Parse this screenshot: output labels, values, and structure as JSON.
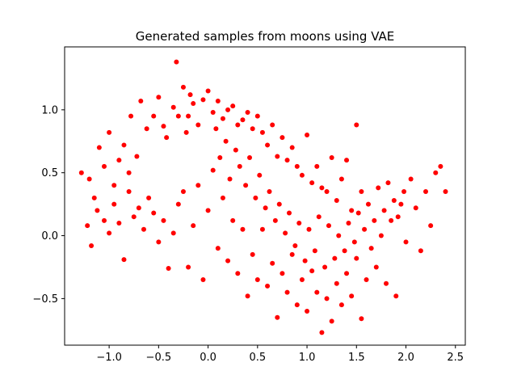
{
  "chart_data": {
    "type": "scatter",
    "title": "Generated samples from moons using VAE",
    "xlabel": "",
    "ylabel": "",
    "xlim": [
      -1.45,
      2.6
    ],
    "ylim": [
      -0.87,
      1.5
    ],
    "x_ticks": [
      -1.0,
      -0.5,
      0.0,
      0.5,
      1.0,
      1.5,
      2.0,
      2.5
    ],
    "x_tick_labels": [
      "−1.0",
      "−0.5",
      "0.0",
      "0.5",
      "1.0",
      "1.5",
      "2.0",
      "2.5"
    ],
    "y_ticks": [
      -0.5,
      0.0,
      0.5,
      1.0
    ],
    "y_tick_labels": [
      "−0.5",
      "0.0",
      "0.5",
      "1.0"
    ],
    "grid": false,
    "legend": "none",
    "marker_color": "#ff0000",
    "series": [
      {
        "points": [
          [
            -1.28,
            0.5
          ],
          [
            -1.2,
            0.45
          ],
          [
            -1.15,
            0.3
          ],
          [
            -1.1,
            0.7
          ],
          [
            -1.05,
            0.55
          ],
          [
            -1.0,
            0.82
          ],
          [
            -0.95,
            0.4
          ],
          [
            -0.9,
            0.6
          ],
          [
            -0.85,
            0.72
          ],
          [
            -0.8,
            0.5
          ],
          [
            -0.78,
            0.95
          ],
          [
            -0.72,
            0.63
          ],
          [
            -0.68,
            1.07
          ],
          [
            -0.62,
            0.85
          ],
          [
            -0.55,
            0.95
          ],
          [
            -0.5,
            1.1
          ],
          [
            -0.45,
            0.87
          ],
          [
            -0.42,
            0.78
          ],
          [
            -0.35,
            1.02
          ],
          [
            -0.32,
            1.38
          ],
          [
            -0.25,
            1.18
          ],
          [
            -0.2,
            0.95
          ],
          [
            -0.15,
            1.05
          ],
          [
            -0.1,
            0.88
          ],
          [
            -0.05,
            1.08
          ],
          [
            0.0,
            1.15
          ],
          [
            0.05,
            0.98
          ],
          [
            0.1,
            1.07
          ],
          [
            0.15,
            0.93
          ],
          [
            0.2,
            1.0
          ],
          [
            0.25,
            1.03
          ],
          [
            0.3,
            0.88
          ],
          [
            0.35,
            0.92
          ],
          [
            0.4,
            0.98
          ],
          [
            0.45,
            0.85
          ],
          [
            0.5,
            0.95
          ],
          [
            0.55,
            0.82
          ],
          [
            0.6,
            0.72
          ],
          [
            0.65,
            0.88
          ],
          [
            0.7,
            0.63
          ],
          [
            0.75,
            0.78
          ],
          [
            0.8,
            0.6
          ],
          [
            0.85,
            0.7
          ],
          [
            0.9,
            0.55
          ],
          [
            0.95,
            0.48
          ],
          [
            1.0,
            0.8
          ],
          [
            1.05,
            0.42
          ],
          [
            1.1,
            0.55
          ],
          [
            1.15,
            0.38
          ],
          [
            1.2,
            0.35
          ],
          [
            1.25,
            0.62
          ],
          [
            1.3,
            0.28
          ],
          [
            1.35,
            0.45
          ],
          [
            1.4,
            0.6
          ],
          [
            1.45,
            0.2
          ],
          [
            1.5,
            0.88
          ],
          [
            1.55,
            0.35
          ],
          [
            -1.22,
            0.08
          ],
          [
            -1.18,
            -0.08
          ],
          [
            -1.12,
            0.2
          ],
          [
            -1.05,
            0.12
          ],
          [
            -1.0,
            0.02
          ],
          [
            -0.95,
            0.25
          ],
          [
            -0.9,
            0.1
          ],
          [
            -0.85,
            -0.19
          ],
          [
            -0.8,
            0.35
          ],
          [
            -0.75,
            0.15
          ],
          [
            -0.7,
            0.22
          ],
          [
            -0.65,
            0.05
          ],
          [
            -0.6,
            0.3
          ],
          [
            -0.55,
            0.18
          ],
          [
            -0.5,
            -0.05
          ],
          [
            -0.45,
            0.12
          ],
          [
            -0.4,
            -0.26
          ],
          [
            -0.35,
            0.02
          ],
          [
            -0.3,
            0.25
          ],
          [
            -0.25,
            0.35
          ],
          [
            -0.2,
            -0.25
          ],
          [
            -0.15,
            0.08
          ],
          [
            -0.1,
            0.4
          ],
          [
            -0.05,
            -0.35
          ],
          [
            0.0,
            0.2
          ],
          [
            0.05,
            0.52
          ],
          [
            0.1,
            -0.1
          ],
          [
            0.15,
            0.3
          ],
          [
            0.2,
            -0.2
          ],
          [
            0.25,
            0.12
          ],
          [
            0.3,
            -0.3
          ],
          [
            0.35,
            0.05
          ],
          [
            0.4,
            -0.48
          ],
          [
            0.45,
            -0.15
          ],
          [
            0.5,
            -0.35
          ],
          [
            0.55,
            0.05
          ],
          [
            0.6,
            -0.4
          ],
          [
            0.65,
            -0.22
          ],
          [
            0.7,
            -0.65
          ],
          [
            0.75,
            -0.3
          ],
          [
            0.8,
            -0.45
          ],
          [
            0.85,
            -0.15
          ],
          [
            0.9,
            -0.55
          ],
          [
            0.95,
            -0.35
          ],
          [
            1.0,
            -0.6
          ],
          [
            1.05,
            -0.28
          ],
          [
            1.1,
            -0.45
          ],
          [
            1.15,
            -0.77
          ],
          [
            1.2,
            -0.5
          ],
          [
            1.25,
            -0.68
          ],
          [
            1.3,
            -0.38
          ],
          [
            1.35,
            -0.55
          ],
          [
            1.4,
            -0.3
          ],
          [
            1.45,
            -0.48
          ],
          [
            1.5,
            -0.18
          ],
          [
            1.55,
            -0.66
          ],
          [
            1.6,
            -0.35
          ],
          [
            1.65,
            -0.1
          ],
          [
            1.7,
            -0.25
          ],
          [
            1.75,
            0.0
          ],
          [
            1.8,
            -0.38
          ],
          [
            1.85,
            0.12
          ],
          [
            1.9,
            -0.48
          ],
          [
            1.95,
            0.25
          ],
          [
            2.0,
            -0.05
          ],
          [
            2.05,
            0.45
          ],
          [
            2.1,
            0.22
          ],
          [
            2.15,
            -0.12
          ],
          [
            2.2,
            0.35
          ],
          [
            2.25,
            0.08
          ],
          [
            2.3,
            0.5
          ],
          [
            2.35,
            0.55
          ],
          [
            2.4,
            0.35
          ],
          [
            -0.3,
            0.95
          ],
          [
            -0.22,
            0.82
          ],
          [
            -0.18,
            1.12
          ],
          [
            0.08,
            0.85
          ],
          [
            0.12,
            0.62
          ],
          [
            0.18,
            0.75
          ],
          [
            0.22,
            0.45
          ],
          [
            0.28,
            0.68
          ],
          [
            0.32,
            0.55
          ],
          [
            0.38,
            0.4
          ],
          [
            0.42,
            0.62
          ],
          [
            0.48,
            0.3
          ],
          [
            0.52,
            0.48
          ],
          [
            0.58,
            0.22
          ],
          [
            0.62,
            0.35
          ],
          [
            0.68,
            0.12
          ],
          [
            0.72,
            0.25
          ],
          [
            0.78,
            0.02
          ],
          [
            0.82,
            0.18
          ],
          [
            0.88,
            -0.08
          ],
          [
            0.92,
            0.1
          ],
          [
            0.98,
            -0.2
          ],
          [
            1.02,
            0.05
          ],
          [
            1.08,
            -0.12
          ],
          [
            1.12,
            0.15
          ],
          [
            1.18,
            -0.25
          ],
          [
            1.22,
            0.08
          ],
          [
            1.28,
            -0.18
          ],
          [
            1.32,
            0.0
          ],
          [
            1.38,
            -0.12
          ],
          [
            1.42,
            0.1
          ],
          [
            1.48,
            -0.05
          ],
          [
            1.52,
            0.18
          ],
          [
            1.58,
            0.05
          ],
          [
            1.62,
            0.25
          ],
          [
            1.68,
            0.12
          ],
          [
            1.72,
            0.38
          ],
          [
            1.78,
            0.2
          ],
          [
            1.82,
            0.42
          ],
          [
            1.88,
            0.28
          ],
          [
            1.92,
            0.15
          ],
          [
            1.98,
            0.35
          ]
        ]
      }
    ]
  }
}
